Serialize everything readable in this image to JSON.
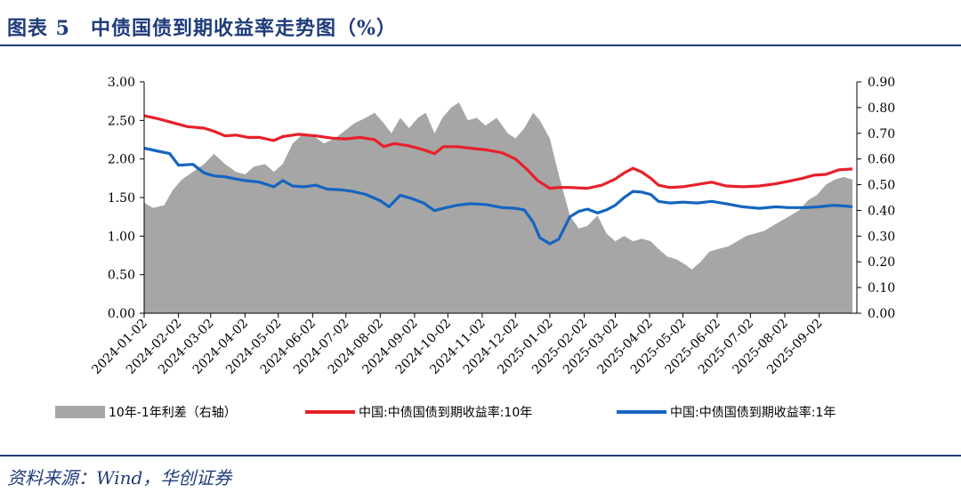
{
  "header": {
    "title": "图表 5　中债国债到期收益率走势图（%）"
  },
  "footer": {
    "source": "资料来源：Wind，华创证券"
  },
  "chart_data": {
    "type": "line",
    "x_type": "date",
    "x_ticks": [
      "2024-01-02",
      "2024-02-02",
      "2024-03-02",
      "2024-04-02",
      "2024-05-02",
      "2024-06-02",
      "2024-07-02",
      "2024-08-02",
      "2024-09-02",
      "2024-10-02",
      "2024-11-02",
      "2024-12-02",
      "2025-01-02",
      "2025-02-02",
      "2025-03-02",
      "2025-04-02",
      "2025-05-02",
      "2025-06-02",
      "2025-07-02",
      "2025-08-02",
      "2025-09-02"
    ],
    "y_left": {
      "min": 0,
      "max": 3.0,
      "ticks": [
        "0.00",
        "0.50",
        "1.00",
        "1.50",
        "2.00",
        "2.50",
        "3.00"
      ]
    },
    "y_right": {
      "min": 0,
      "max": 0.9,
      "ticks": [
        "0.00",
        "0.10",
        "0.20",
        "0.30",
        "0.40",
        "0.50",
        "0.60",
        "0.70",
        "0.80",
        "0.90"
      ]
    },
    "grid": false,
    "legend_position": "bottom",
    "series": [
      {
        "name": "10年-1年利差（右轴）",
        "type": "area",
        "axis": "right",
        "color": "#a6a6a6",
        "points": [
          [
            "2024-01-02",
            0.43
          ],
          [
            "2024-01-10",
            0.41
          ],
          [
            "2024-01-20",
            0.42
          ],
          [
            "2024-01-28",
            0.48
          ],
          [
            "2024-02-05",
            0.52
          ],
          [
            "2024-02-15",
            0.55
          ],
          [
            "2024-02-25",
            0.58
          ],
          [
            "2024-03-05",
            0.62
          ],
          [
            "2024-03-15",
            0.58
          ],
          [
            "2024-03-25",
            0.55
          ],
          [
            "2024-04-02",
            0.54
          ],
          [
            "2024-04-10",
            0.57
          ],
          [
            "2024-04-20",
            0.58
          ],
          [
            "2024-04-28",
            0.55
          ],
          [
            "2024-05-06",
            0.58
          ],
          [
            "2024-05-15",
            0.66
          ],
          [
            "2024-05-25",
            0.7
          ],
          [
            "2024-06-03",
            0.69
          ],
          [
            "2024-06-12",
            0.66
          ],
          [
            "2024-06-22",
            0.68
          ],
          [
            "2024-07-01",
            0.71
          ],
          [
            "2024-07-10",
            0.74
          ],
          [
            "2024-07-20",
            0.76
          ],
          [
            "2024-07-28",
            0.78
          ],
          [
            "2024-08-05",
            0.74
          ],
          [
            "2024-08-12",
            0.7
          ],
          [
            "2024-08-20",
            0.76
          ],
          [
            "2024-08-28",
            0.72
          ],
          [
            "2024-09-05",
            0.76
          ],
          [
            "2024-09-12",
            0.78
          ],
          [
            "2024-09-20",
            0.7
          ],
          [
            "2024-09-27",
            0.76
          ],
          [
            "2024-10-05",
            0.8
          ],
          [
            "2024-10-12",
            0.82
          ],
          [
            "2024-10-20",
            0.75
          ],
          [
            "2024-10-28",
            0.76
          ],
          [
            "2024-11-05",
            0.73
          ],
          [
            "2024-11-15",
            0.76
          ],
          [
            "2024-11-25",
            0.7
          ],
          [
            "2024-12-02",
            0.68
          ],
          [
            "2024-12-10",
            0.72
          ],
          [
            "2024-12-18",
            0.78
          ],
          [
            "2024-12-24",
            0.75
          ],
          [
            "2025-01-02",
            0.68
          ],
          [
            "2025-01-10",
            0.54
          ],
          [
            "2025-01-20",
            0.38
          ],
          [
            "2025-01-28",
            0.33
          ],
          [
            "2025-02-05",
            0.34
          ],
          [
            "2025-02-14",
            0.38
          ],
          [
            "2025-02-22",
            0.31
          ],
          [
            "2025-03-02",
            0.28
          ],
          [
            "2025-03-10",
            0.3
          ],
          [
            "2025-03-18",
            0.28
          ],
          [
            "2025-03-26",
            0.29
          ],
          [
            "2025-04-03",
            0.28
          ],
          [
            "2025-04-10",
            0.25
          ],
          [
            "2025-04-18",
            0.22
          ],
          [
            "2025-04-26",
            0.21
          ],
          [
            "2025-05-04",
            0.19
          ],
          [
            "2025-05-10",
            0.17
          ],
          [
            "2025-05-18",
            0.2
          ],
          [
            "2025-05-26",
            0.24
          ],
          [
            "2025-06-03",
            0.25
          ],
          [
            "2025-06-12",
            0.26
          ],
          [
            "2025-06-20",
            0.28
          ],
          [
            "2025-06-28",
            0.3
          ],
          [
            "2025-07-06",
            0.31
          ],
          [
            "2025-07-14",
            0.32
          ],
          [
            "2025-07-22",
            0.34
          ],
          [
            "2025-07-30",
            0.36
          ],
          [
            "2025-08-07",
            0.38
          ],
          [
            "2025-08-15",
            0.4
          ],
          [
            "2025-08-23",
            0.44
          ],
          [
            "2025-08-31",
            0.46
          ],
          [
            "2025-09-08",
            0.5
          ],
          [
            "2025-09-16",
            0.52
          ],
          [
            "2025-09-24",
            0.53
          ],
          [
            "2025-10-02",
            0.52
          ]
        ]
      },
      {
        "name": "中国:中债国债到期收益率:10年",
        "type": "line",
        "axis": "left",
        "color": "#e8202a",
        "points": [
          [
            "2024-01-02",
            2.56
          ],
          [
            "2024-01-15",
            2.52
          ],
          [
            "2024-01-28",
            2.47
          ],
          [
            "2024-02-10",
            2.42
          ],
          [
            "2024-02-25",
            2.4
          ],
          [
            "2024-03-05",
            2.36
          ],
          [
            "2024-03-15",
            2.3
          ],
          [
            "2024-03-25",
            2.31
          ],
          [
            "2024-04-05",
            2.28
          ],
          [
            "2024-04-15",
            2.28
          ],
          [
            "2024-04-28",
            2.24
          ],
          [
            "2024-05-06",
            2.29
          ],
          [
            "2024-05-20",
            2.32
          ],
          [
            "2024-06-05",
            2.3
          ],
          [
            "2024-06-20",
            2.27
          ],
          [
            "2024-07-02",
            2.26
          ],
          [
            "2024-07-15",
            2.28
          ],
          [
            "2024-07-28",
            2.25
          ],
          [
            "2024-08-05",
            2.16
          ],
          [
            "2024-08-15",
            2.2
          ],
          [
            "2024-08-28",
            2.17
          ],
          [
            "2024-09-10",
            2.12
          ],
          [
            "2024-09-20",
            2.07
          ],
          [
            "2024-09-28",
            2.16
          ],
          [
            "2024-10-10",
            2.16
          ],
          [
            "2024-10-22",
            2.14
          ],
          [
            "2024-11-05",
            2.12
          ],
          [
            "2024-11-20",
            2.08
          ],
          [
            "2024-12-02",
            2.0
          ],
          [
            "2024-12-12",
            1.87
          ],
          [
            "2024-12-22",
            1.72
          ],
          [
            "2025-01-02",
            1.62
          ],
          [
            "2025-01-10",
            1.63
          ],
          [
            "2025-01-20",
            1.63
          ],
          [
            "2025-02-05",
            1.62
          ],
          [
            "2025-02-18",
            1.66
          ],
          [
            "2025-03-02",
            1.74
          ],
          [
            "2025-03-10",
            1.82
          ],
          [
            "2025-03-18",
            1.88
          ],
          [
            "2025-03-26",
            1.83
          ],
          [
            "2025-04-03",
            1.75
          ],
          [
            "2025-04-10",
            1.66
          ],
          [
            "2025-04-20",
            1.63
          ],
          [
            "2025-05-02",
            1.64
          ],
          [
            "2025-05-15",
            1.67
          ],
          [
            "2025-05-28",
            1.7
          ],
          [
            "2025-06-10",
            1.65
          ],
          [
            "2025-06-25",
            1.64
          ],
          [
            "2025-07-10",
            1.65
          ],
          [
            "2025-07-25",
            1.68
          ],
          [
            "2025-08-05",
            1.71
          ],
          [
            "2025-08-18",
            1.75
          ],
          [
            "2025-08-28",
            1.79
          ],
          [
            "2025-09-08",
            1.8
          ],
          [
            "2025-09-20",
            1.86
          ],
          [
            "2025-10-02",
            1.87
          ]
        ]
      },
      {
        "name": "中国:中债国债到期收益率:1年",
        "type": "line",
        "axis": "left",
        "color": "#1565c0",
        "points": [
          [
            "2024-01-02",
            2.14
          ],
          [
            "2024-01-15",
            2.1
          ],
          [
            "2024-01-25",
            2.07
          ],
          [
            "2024-02-02",
            1.92
          ],
          [
            "2024-02-15",
            1.93
          ],
          [
            "2024-02-25",
            1.82
          ],
          [
            "2024-03-05",
            1.78
          ],
          [
            "2024-03-15",
            1.77
          ],
          [
            "2024-03-25",
            1.74
          ],
          [
            "2024-04-02",
            1.72
          ],
          [
            "2024-04-15",
            1.7
          ],
          [
            "2024-04-28",
            1.64
          ],
          [
            "2024-05-06",
            1.72
          ],
          [
            "2024-05-15",
            1.65
          ],
          [
            "2024-05-25",
            1.64
          ],
          [
            "2024-06-05",
            1.66
          ],
          [
            "2024-06-15",
            1.61
          ],
          [
            "2024-06-28",
            1.6
          ],
          [
            "2024-07-08",
            1.58
          ],
          [
            "2024-07-20",
            1.54
          ],
          [
            "2024-08-02",
            1.46
          ],
          [
            "2024-08-10",
            1.38
          ],
          [
            "2024-08-20",
            1.53
          ],
          [
            "2024-08-30",
            1.49
          ],
          [
            "2024-09-10",
            1.43
          ],
          [
            "2024-09-20",
            1.33
          ],
          [
            "2024-09-28",
            1.36
          ],
          [
            "2024-10-10",
            1.4
          ],
          [
            "2024-10-22",
            1.42
          ],
          [
            "2024-11-05",
            1.41
          ],
          [
            "2024-11-20",
            1.37
          ],
          [
            "2024-12-02",
            1.36
          ],
          [
            "2024-12-10",
            1.34
          ],
          [
            "2024-12-18",
            1.18
          ],
          [
            "2024-12-24",
            0.98
          ],
          [
            "2025-01-02",
            0.9
          ],
          [
            "2025-01-10",
            0.96
          ],
          [
            "2025-01-20",
            1.25
          ],
          [
            "2025-01-28",
            1.32
          ],
          [
            "2025-02-05",
            1.35
          ],
          [
            "2025-02-14",
            1.3
          ],
          [
            "2025-02-22",
            1.34
          ],
          [
            "2025-03-02",
            1.4
          ],
          [
            "2025-03-10",
            1.5
          ],
          [
            "2025-03-18",
            1.58
          ],
          [
            "2025-03-26",
            1.57
          ],
          [
            "2025-04-03",
            1.54
          ],
          [
            "2025-04-10",
            1.45
          ],
          [
            "2025-04-20",
            1.43
          ],
          [
            "2025-05-02",
            1.44
          ],
          [
            "2025-05-15",
            1.43
          ],
          [
            "2025-05-28",
            1.45
          ],
          [
            "2025-06-10",
            1.42
          ],
          [
            "2025-06-25",
            1.38
          ],
          [
            "2025-07-10",
            1.36
          ],
          [
            "2025-07-25",
            1.38
          ],
          [
            "2025-08-05",
            1.37
          ],
          [
            "2025-08-20",
            1.37
          ],
          [
            "2025-09-02",
            1.38
          ],
          [
            "2025-09-15",
            1.4
          ],
          [
            "2025-09-25",
            1.39
          ],
          [
            "2025-10-02",
            1.38
          ]
        ]
      }
    ]
  }
}
